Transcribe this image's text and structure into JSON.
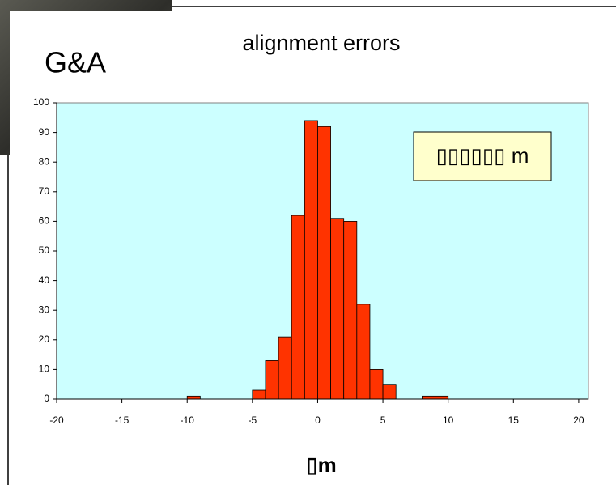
{
  "slide_label": "G&A",
  "chart_data": {
    "type": "histogram",
    "title": "alignment errors",
    "x_label": "▯m",
    "annotation": "▯▯▯▯▯▯ m",
    "bins": [
      -10,
      -9,
      -8,
      -7,
      -6,
      -5,
      -4,
      -3,
      -2,
      -1,
      0,
      1,
      2,
      3,
      4,
      5,
      6,
      7,
      8,
      9,
      10
    ],
    "values": [
      1,
      0,
      0,
      0,
      0,
      3,
      13,
      21,
      62,
      94,
      92,
      61,
      60,
      32,
      10,
      5,
      0,
      0,
      1,
      1
    ],
    "color": "#ff3300",
    "xlim": [
      -20,
      20.75
    ],
    "xticks": [
      -20,
      -15,
      -10,
      -5,
      0,
      5,
      10,
      15,
      20
    ],
    "ylim": [
      0,
      100
    ],
    "yticks": [
      0,
      10,
      20,
      30,
      40,
      50,
      60,
      70,
      80,
      90,
      100
    ],
    "plot_background": "#ccffff"
  }
}
